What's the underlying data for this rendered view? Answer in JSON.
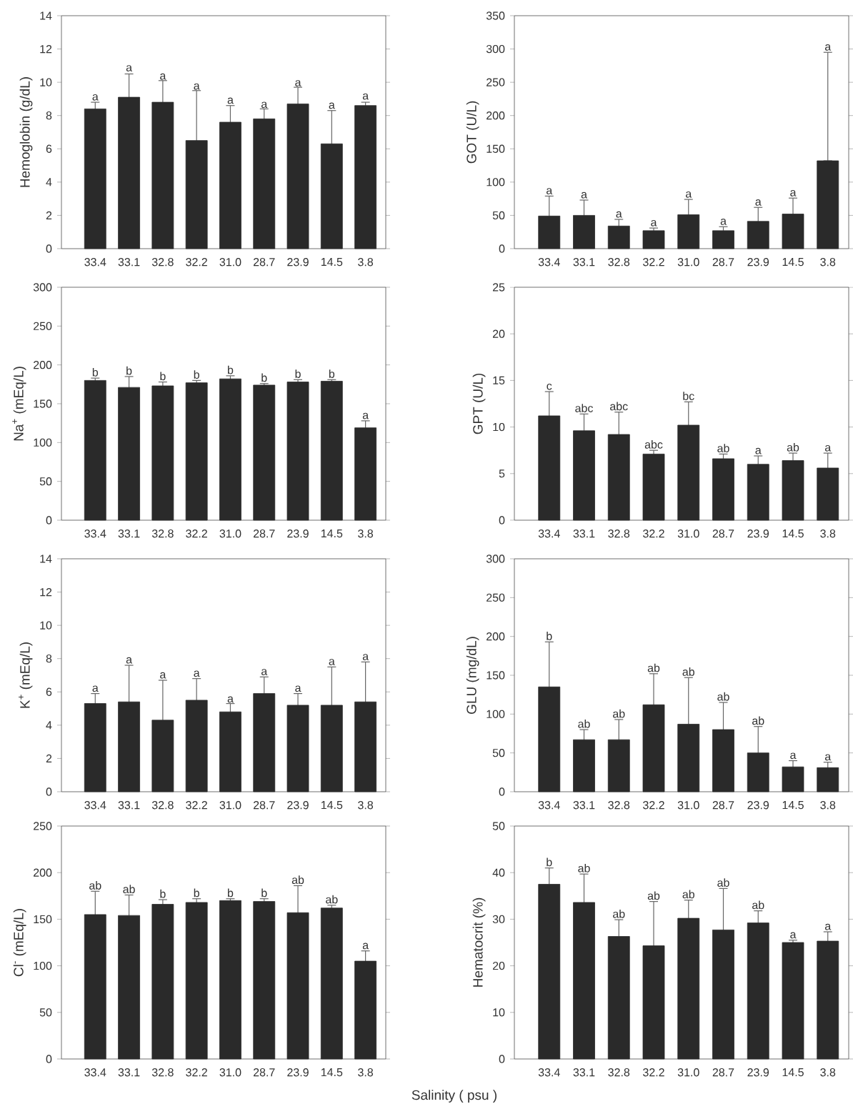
{
  "chart_data": [
    {
      "type": "bar",
      "ylabel": "Hemoglobin (g/dL)",
      "categories": [
        "33.4",
        "33.1",
        "32.8",
        "32.2",
        "31.0",
        "28.7",
        "23.9",
        "14.5",
        "3.8"
      ],
      "values": [
        8.4,
        9.1,
        8.8,
        6.5,
        7.6,
        7.8,
        8.7,
        6.3,
        8.6
      ],
      "errors": [
        0.4,
        1.4,
        1.3,
        3.0,
        1.0,
        0.6,
        1.0,
        2.0,
        0.2
      ],
      "color": "#2a2a2a",
      "ylim": [
        0,
        14
      ],
      "yticks": [
        0,
        2,
        4,
        6,
        8,
        10,
        12,
        14
      ],
      "annotations": [
        {
          "text": "a",
          "x": "33.4",
          "y": 8.8
        },
        {
          "text": "a",
          "x": "33.1",
          "y": 10.55
        },
        {
          "text": "a",
          "x": "32.8",
          "y": 10.05
        },
        {
          "text": "a",
          "x": "32.2",
          "y": 9.45
        },
        {
          "text": "a",
          "x": "31.0",
          "y": 8.6
        },
        {
          "text": "a",
          "x": "28.7",
          "y": 8.35
        },
        {
          "text": "a",
          "x": "23.9",
          "y": 9.65
        },
        {
          "text": "a",
          "x": "14.5",
          "y": 8.3
        },
        {
          "text": "a",
          "x": "3.8",
          "y": 8.85
        }
      ]
    },
    {
      "type": "bar",
      "ylabel": "GOT (U/L)",
      "categories": [
        "33.4",
        "33.1",
        "32.8",
        "32.2",
        "31.0",
        "28.7",
        "23.9",
        "14.5",
        "3.8"
      ],
      "values": [
        49,
        50,
        34,
        27,
        51,
        27,
        41,
        52,
        132
      ],
      "errors": [
        30,
        23,
        10,
        4,
        23,
        6,
        21,
        24,
        [
          132,
          295
        ]
      ],
      "color": "#2a2a2a",
      "ylim": [
        0,
        350
      ],
      "yticks": [
        0,
        50,
        100,
        150,
        200,
        250,
        300,
        350
      ],
      "annotations": [
        {
          "text": "a",
          "x": "33.4",
          "y": 79
        },
        {
          "text": "a",
          "x": "33.1",
          "y": 73
        },
        {
          "text": "a",
          "x": "32.8",
          "y": 44
        },
        {
          "text": "a",
          "x": "32.2",
          "y": 31
        },
        {
          "text": "a",
          "x": "31.0",
          "y": 74
        },
        {
          "text": "a",
          "x": "28.7",
          "y": 33
        },
        {
          "text": "a",
          "x": "23.9",
          "y": 62
        },
        {
          "text": "a",
          "x": "14.5",
          "y": 76
        },
        {
          "text": "a",
          "x": "3.8",
          "y": 295
        }
      ]
    },
    {
      "type": "bar",
      "ylabel": "Na$^{+}$ (mEq/L)",
      "categories": [
        "33.4",
        "33.1",
        "32.8",
        "32.2",
        "31.0",
        "28.7",
        "23.9",
        "14.5",
        "3.8"
      ],
      "values": [
        180,
        171,
        173,
        177,
        182,
        174,
        178,
        179,
        119
      ],
      "errors": [
        3,
        14,
        5,
        3,
        4,
        2,
        3,
        2,
        9
      ],
      "color": "#2a2a2a",
      "ylim": [
        0,
        300
      ],
      "yticks": [
        0,
        50,
        100,
        150,
        200,
        250,
        300
      ],
      "annotations": [
        {
          "text": "b",
          "x": "33.4",
          "y": 183
        },
        {
          "text": "b",
          "x": "33.1",
          "y": 185
        },
        {
          "text": "b",
          "x": "32.8",
          "y": 178
        },
        {
          "text": "b",
          "x": "32.2",
          "y": 180
        },
        {
          "text": "b",
          "x": "31.0",
          "y": 186
        },
        {
          "text": "b",
          "x": "28.7",
          "y": 176
        },
        {
          "text": "b",
          "x": "23.9",
          "y": 181
        },
        {
          "text": "b",
          "x": "14.5",
          "y": 181
        },
        {
          "text": "a",
          "x": "3.8",
          "y": 128
        }
      ]
    },
    {
      "type": "bar",
      "ylabel": "GPT (U/L)",
      "categories": [
        "33.4",
        "33.1",
        "32.8",
        "32.2",
        "31.0",
        "28.7",
        "23.9",
        "14.5",
        "3.8"
      ],
      "values": [
        11.2,
        9.6,
        9.2,
        7.1,
        10.2,
        6.6,
        6.0,
        6.4,
        5.6
      ],
      "errors": [
        2.6,
        1.8,
        2.4,
        0.4,
        2.5,
        0.5,
        0.9,
        0.8,
        1.6
      ],
      "color": "#2a2a2a",
      "ylim": [
        0,
        25
      ],
      "yticks": [
        0,
        5,
        10,
        15,
        20,
        25
      ],
      "annotations": [
        {
          "text": "c",
          "x": "33.4",
          "y": 13.8
        },
        {
          "text": "abc",
          "x": "33.1",
          "y": 11.4
        },
        {
          "text": "abc",
          "x": "32.8",
          "y": 11.6
        },
        {
          "text": "abc",
          "x": "32.2",
          "y": 7.5
        },
        {
          "text": "bc",
          "x": "31.0",
          "y": 12.7
        },
        {
          "text": "ab",
          "x": "28.7",
          "y": 7.1
        },
        {
          "text": "a",
          "x": "23.9",
          "y": 6.9
        },
        {
          "text": "ab",
          "x": "14.5",
          "y": 7.2
        },
        {
          "text": "a",
          "x": "3.8",
          "y": 7.2
        }
      ]
    },
    {
      "type": "bar",
      "ylabel": "K$^{+}$ (mEq/L)",
      "categories": [
        "33.4",
        "33.1",
        "32.8",
        "32.2",
        "31.0",
        "28.7",
        "23.9",
        "14.5",
        "3.8"
      ],
      "values": [
        5.3,
        5.4,
        4.3,
        5.5,
        4.8,
        5.9,
        5.2,
        5.2,
        5.4
      ],
      "errors": [
        0.6,
        2.2,
        2.4,
        1.3,
        0.5,
        1.0,
        0.7,
        2.3,
        2.4
      ],
      "color": "#2a2a2a",
      "ylim": [
        0,
        14
      ],
      "yticks": [
        0,
        2,
        4,
        6,
        8,
        10,
        12,
        14
      ],
      "annotations": [
        {
          "text": "a",
          "x": "33.4",
          "y": 5.9
        },
        {
          "text": "a",
          "x": "33.1",
          "y": 7.6
        },
        {
          "text": "a",
          "x": "32.8",
          "y": 6.7
        },
        {
          "text": "a",
          "x": "32.2",
          "y": 6.8
        },
        {
          "text": "a",
          "x": "31.0",
          "y": 5.25
        },
        {
          "text": "a",
          "x": "28.7",
          "y": 6.9
        },
        {
          "text": "a",
          "x": "23.9",
          "y": 5.9
        },
        {
          "text": "a",
          "x": "14.5",
          "y": 7.5
        },
        {
          "text": "a",
          "x": "3.8",
          "y": 7.8
        }
      ]
    },
    {
      "type": "bar",
      "ylabel": "GLU (mg/dL)",
      "categories": [
        "33.4",
        "33.1",
        "32.8",
        "32.2",
        "31.0",
        "28.7",
        "23.9",
        "14.5",
        "3.8"
      ],
      "values": [
        135,
        67,
        67,
        112,
        87,
        80,
        50,
        32,
        31
      ],
      "errors": [
        58,
        13,
        26,
        40,
        60,
        35,
        34,
        8,
        7
      ],
      "color": "#2a2a2a",
      "ylim": [
        0,
        300
      ],
      "yticks": [
        0,
        50,
        100,
        150,
        200,
        250,
        300
      ],
      "annotations": [
        {
          "text": "b",
          "x": "33.4",
          "y": 193
        },
        {
          "text": "ab",
          "x": "33.1",
          "y": 80
        },
        {
          "text": "ab",
          "x": "32.8",
          "y": 93
        },
        {
          "text": "ab",
          "x": "32.2",
          "y": 152
        },
        {
          "text": "ab",
          "x": "31.0",
          "y": 147
        },
        {
          "text": "ab",
          "x": "28.7",
          "y": 115
        },
        {
          "text": "ab",
          "x": "23.9",
          "y": 84
        },
        {
          "text": "a",
          "x": "14.5",
          "y": 40
        },
        {
          "text": "a",
          "x": "3.8",
          "y": 38
        }
      ]
    },
    {
      "type": "bar",
      "ylabel": "Cl$^{-}$ (mEq/L)",
      "categories": [
        "33.4",
        "33.1",
        "32.8",
        "32.2",
        "31.0",
        "28.7",
        "23.9",
        "14.5",
        "3.8"
      ],
      "values": [
        155,
        154,
        166,
        168,
        170,
        169,
        157,
        162,
        105
      ],
      "errors": [
        25,
        22,
        5,
        4,
        2,
        3,
        29,
        3,
        11
      ],
      "color": "#2a2a2a",
      "ylim": [
        0,
        250
      ],
      "yticks": [
        0,
        50,
        100,
        150,
        200,
        250
      ],
      "annotations": [
        {
          "text": "ab",
          "x": "33.4",
          "y": 180
        },
        {
          "text": "ab",
          "x": "33.1",
          "y": 176
        },
        {
          "text": "b",
          "x": "32.8",
          "y": 171
        },
        {
          "text": "b",
          "x": "32.2",
          "y": 172
        },
        {
          "text": "b",
          "x": "31.0",
          "y": 172
        },
        {
          "text": "b",
          "x": "28.7",
          "y": 172
        },
        {
          "text": "ab",
          "x": "23.9",
          "y": 186
        },
        {
          "text": "ab",
          "x": "14.5",
          "y": 165
        },
        {
          "text": "a",
          "x": "3.8",
          "y": 116
        }
      ]
    },
    {
      "type": "bar",
      "ylabel": "Hematocrit (%)",
      "xlabel": "Salinity ( psu )",
      "categories": [
        "33.4",
        "33.1",
        "32.8",
        "32.2",
        "31.0",
        "28.7",
        "23.9",
        "14.5",
        "3.8"
      ],
      "values": [
        37.5,
        33.6,
        26.3,
        24.3,
        30.2,
        27.7,
        29.2,
        25.0,
        25.3
      ],
      "errors": [
        3.5,
        6.1,
        3.6,
        9.5,
        3.9,
        8.9,
        2.6,
        0.5,
        2.0
      ],
      "color": "#2a2a2a",
      "ylim": [
        0,
        50
      ],
      "yticks": [
        0,
        10,
        20,
        30,
        40,
        50
      ],
      "annotations": [
        {
          "text": "b",
          "x": "33.4",
          "y": 41
        },
        {
          "text": "ab",
          "x": "33.1",
          "y": 39.7
        },
        {
          "text": "ab",
          "x": "32.8",
          "y": 29.9
        },
        {
          "text": "ab",
          "x": "32.2",
          "y": 33.8
        },
        {
          "text": "ab",
          "x": "31.0",
          "y": 34.1
        },
        {
          "text": "ab",
          "x": "28.7",
          "y": 36.6
        },
        {
          "text": "ab",
          "x": "23.9",
          "y": 31.8
        },
        {
          "text": "a",
          "x": "14.5",
          "y": 25.5
        },
        {
          "text": "a",
          "x": "3.8",
          "y": 27.3
        }
      ]
    }
  ]
}
